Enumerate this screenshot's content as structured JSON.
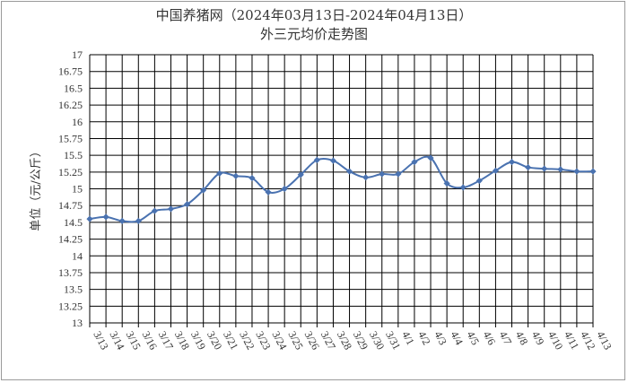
{
  "chart_data": {
    "type": "line",
    "title": "中国养猪网（2024年03月13日-2024年04月13日）",
    "subtitle": "外三元均价走势图",
    "ylabel": "单位（元/公斤）",
    "xlabel": "",
    "ylim": [
      13,
      17
    ],
    "ystep": 0.25,
    "yticks": [
      "13",
      "13.25",
      "13.5",
      "13.75",
      "14",
      "14.25",
      "14.5",
      "14.75",
      "15",
      "15.25",
      "15.5",
      "15.75",
      "16",
      "16.25",
      "16.5",
      "16.75",
      "17"
    ],
    "grid": true,
    "legend": "none",
    "categories": [
      "3/13",
      "3/14",
      "3/15",
      "3/16",
      "3/17",
      "3/18",
      "3/19",
      "3/20",
      "3/21",
      "3/22",
      "3/23",
      "3/24",
      "3/25",
      "3/26",
      "3/27",
      "3/28",
      "3/29",
      "3/30",
      "3/31",
      "4/1",
      "4/2",
      "4/3",
      "4/4",
      "4/5",
      "4/6",
      "4/7",
      "4/8",
      "4/9",
      "4/10",
      "4/11",
      "4/12",
      "4/13"
    ],
    "values": [
      14.55,
      14.58,
      14.52,
      14.52,
      14.67,
      14.7,
      14.77,
      14.98,
      15.23,
      15.19,
      15.16,
      14.95,
      15.0,
      15.21,
      15.43,
      15.42,
      15.26,
      15.17,
      15.22,
      15.22,
      15.4,
      15.46,
      15.08,
      15.02,
      15.12,
      15.27,
      15.4,
      15.32,
      15.3,
      15.29,
      15.26,
      15.26
    ],
    "line_color": "#4a72b0"
  }
}
